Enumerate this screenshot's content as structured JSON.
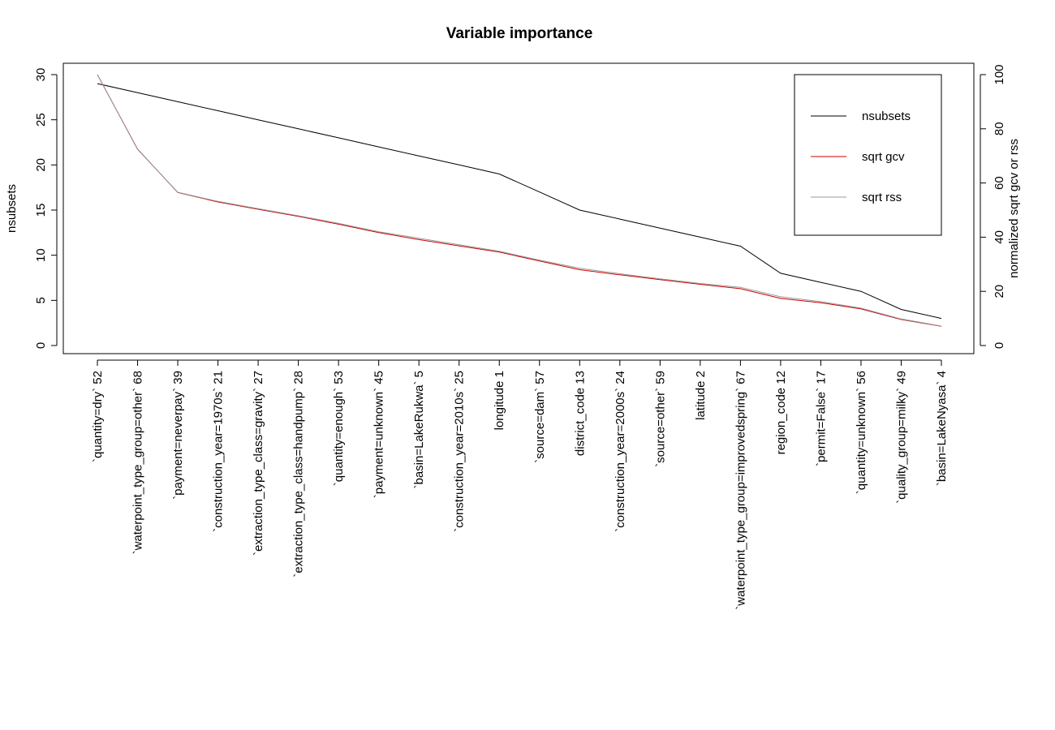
{
  "chart_data": {
    "type": "line",
    "title": "Variable importance",
    "ylabel": "nsubsets",
    "y2label": "normalized sqrt gcv or rss",
    "ylim": [
      0,
      30
    ],
    "y2lim": [
      0,
      100
    ],
    "yticks": [
      0,
      5,
      10,
      15,
      20,
      25,
      30
    ],
    "y2ticks": [
      0,
      20,
      40,
      60,
      80,
      100
    ],
    "categories": [
      "`quantity=dry`  52",
      "`waterpoint_type_group=other`  68",
      "`payment=neverpay`  39",
      "`construction_year=1970s`  21",
      "`extraction_type_class=gravity`  27",
      "`extraction_type_class=handpump`  28",
      "`quantity=enough`  53",
      "`payment=unknown`  45",
      "`basin=LakeRukwa`  5",
      "`construction_year=2010s`  25",
      "longitude  1",
      "`source=dam`  57",
      "district_code  13",
      "`construction_year=2000s`  24",
      "`source=other`  59",
      "latitude  2",
      "`waterpoint_type_group=improvedspring`  67",
      "region_code  12",
      "`permit=False`  17",
      "`quantity=unknown`  56",
      "`quality_group=milky`  49",
      "`basin=LakeNyasa`  4"
    ],
    "series": [
      {
        "name": "nsubsets",
        "axis": "left",
        "color": "#000000",
        "values": [
          29,
          28,
          27,
          26,
          25,
          24,
          23,
          22,
          21,
          20,
          19,
          17,
          15,
          14,
          13,
          12,
          11,
          8,
          7,
          6,
          4,
          3
        ]
      },
      {
        "name": "sqrt gcv",
        "axis": "right",
        "color": "#cc0000",
        "values": [
          100,
          72.5,
          56.5,
          53,
          50.3,
          47.7,
          44.8,
          41.7,
          39.1,
          36.8,
          34.5,
          31.2,
          28,
          26.1,
          24.3,
          22.6,
          21,
          17.4,
          15.8,
          13.5,
          9.6,
          7.1
        ]
      },
      {
        "name": "sqrt rss",
        "axis": "right",
        "color": "#999999",
        "values": [
          100,
          72.4,
          56.6,
          53.2,
          50.5,
          47.9,
          45.1,
          42,
          39.6,
          37.2,
          34.8,
          31.5,
          28.5,
          26.5,
          24.6,
          22.9,
          21.5,
          18,
          16.2,
          13.8,
          9.8,
          7.2
        ]
      }
    ],
    "legend": {
      "placement": "top-right",
      "entries": [
        "nsubsets",
        "sqrt gcv",
        "sqrt rss"
      ]
    }
  }
}
